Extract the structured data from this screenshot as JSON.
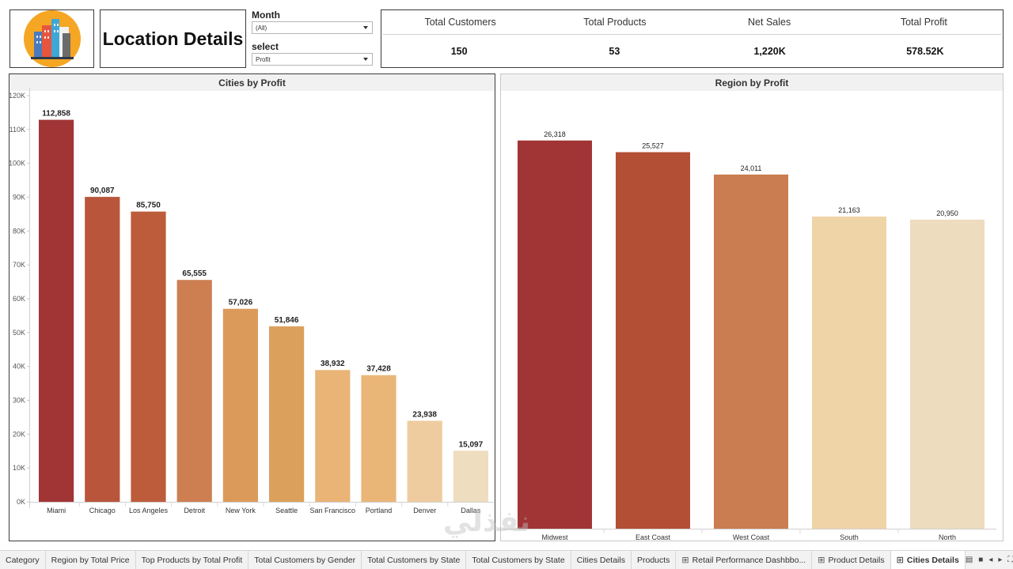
{
  "header": {
    "title": "Location Details",
    "logo_icon": "city-buildings-icon",
    "filters": [
      {
        "label": "Month",
        "value": "(All)"
      },
      {
        "label": "select",
        "value": "Profit"
      }
    ],
    "kpis": [
      {
        "label": "Total Customers",
        "value": "150"
      },
      {
        "label": "Total Products",
        "value": "53"
      },
      {
        "label": "Net Sales",
        "value": "1,220K"
      },
      {
        "label": "Total Profit",
        "value": "578.52K"
      }
    ]
  },
  "chart_data": [
    {
      "type": "bar",
      "title": "Cities by Profit",
      "categories": [
        "Miami",
        "Chicago",
        "Los Angeles",
        "Detroit",
        "New York",
        "Seattle",
        "San Francisco",
        "Portland",
        "Denver",
        "Dallas"
      ],
      "values": [
        112858,
        90087,
        85750,
        65555,
        57026,
        51846,
        38932,
        37428,
        23938,
        15097
      ],
      "data_labels": [
        "112,858",
        "90,087",
        "85,750",
        "65,555",
        "57,026",
        "51,846",
        "38,932",
        "37,428",
        "23,938",
        "15,097"
      ],
      "colors": [
        "#a13535",
        "#b9553b",
        "#bd5c3b",
        "#cd7f52",
        "#dc9a5a",
        "#dca05d",
        "#e9b475",
        "#eab678",
        "#efcc9f",
        "#efddbf"
      ],
      "yticks": [
        "0K",
        "10K",
        "20K",
        "30K",
        "40K",
        "50K",
        "60K",
        "70K",
        "80K",
        "90K",
        "100K",
        "110K",
        "120K"
      ],
      "ylim": [
        0,
        120000
      ],
      "grid": false,
      "xlabel": "",
      "ylabel": ""
    },
    {
      "type": "bar",
      "title": "Region by Profit",
      "categories": [
        "Midwest",
        "East Coast",
        "West Coast",
        "South",
        "North"
      ],
      "values": [
        26318,
        25527,
        24011,
        21163,
        20950
      ],
      "data_labels": [
        "26,318",
        "25,527",
        "24,011",
        "21,163",
        "20,950"
      ],
      "colors": [
        "#a13535",
        "#b24f35",
        "#c97d50",
        "#efd4a8",
        "#eedcbe"
      ],
      "ylim": [
        0,
        29200
      ],
      "grid": false,
      "xlabel": "",
      "ylabel": ""
    }
  ],
  "tabs": [
    {
      "label": "Category",
      "icon": "",
      "active": false
    },
    {
      "label": "Region by Total Price",
      "icon": "",
      "active": false
    },
    {
      "label": "Top Products by Total Profit",
      "icon": "",
      "active": false
    },
    {
      "label": "Total Customers by Gender",
      "icon": "",
      "active": false
    },
    {
      "label": "Total Customers by State",
      "icon": "",
      "active": false
    },
    {
      "label": "Total Customers by State",
      "icon": "",
      "active": false
    },
    {
      "label": "Cities Details",
      "icon": "",
      "active": false
    },
    {
      "label": "Products",
      "icon": "",
      "active": false
    },
    {
      "label": "Retail Performance Dashbbo...",
      "icon": "dashboard-grid-icon",
      "active": false
    },
    {
      "label": "Product Details",
      "icon": "dashboard-grid-icon",
      "active": false
    },
    {
      "label": "Cities Details",
      "icon": "dashboard-grid-icon",
      "active": true
    }
  ],
  "tab_controls": [
    {
      "name": "show-tabs-icon",
      "glyph": "▤"
    },
    {
      "name": "filmstrip-icon",
      "glyph": "■"
    },
    {
      "name": "prev-tab-icon",
      "glyph": "◂"
    },
    {
      "name": "next-tab-icon",
      "glyph": "▸"
    },
    {
      "name": "fit-screen-icon",
      "glyph": "⛶"
    },
    {
      "name": "fullscreen-icon",
      "glyph": "⤢"
    }
  ],
  "watermark": "نفذلي"
}
